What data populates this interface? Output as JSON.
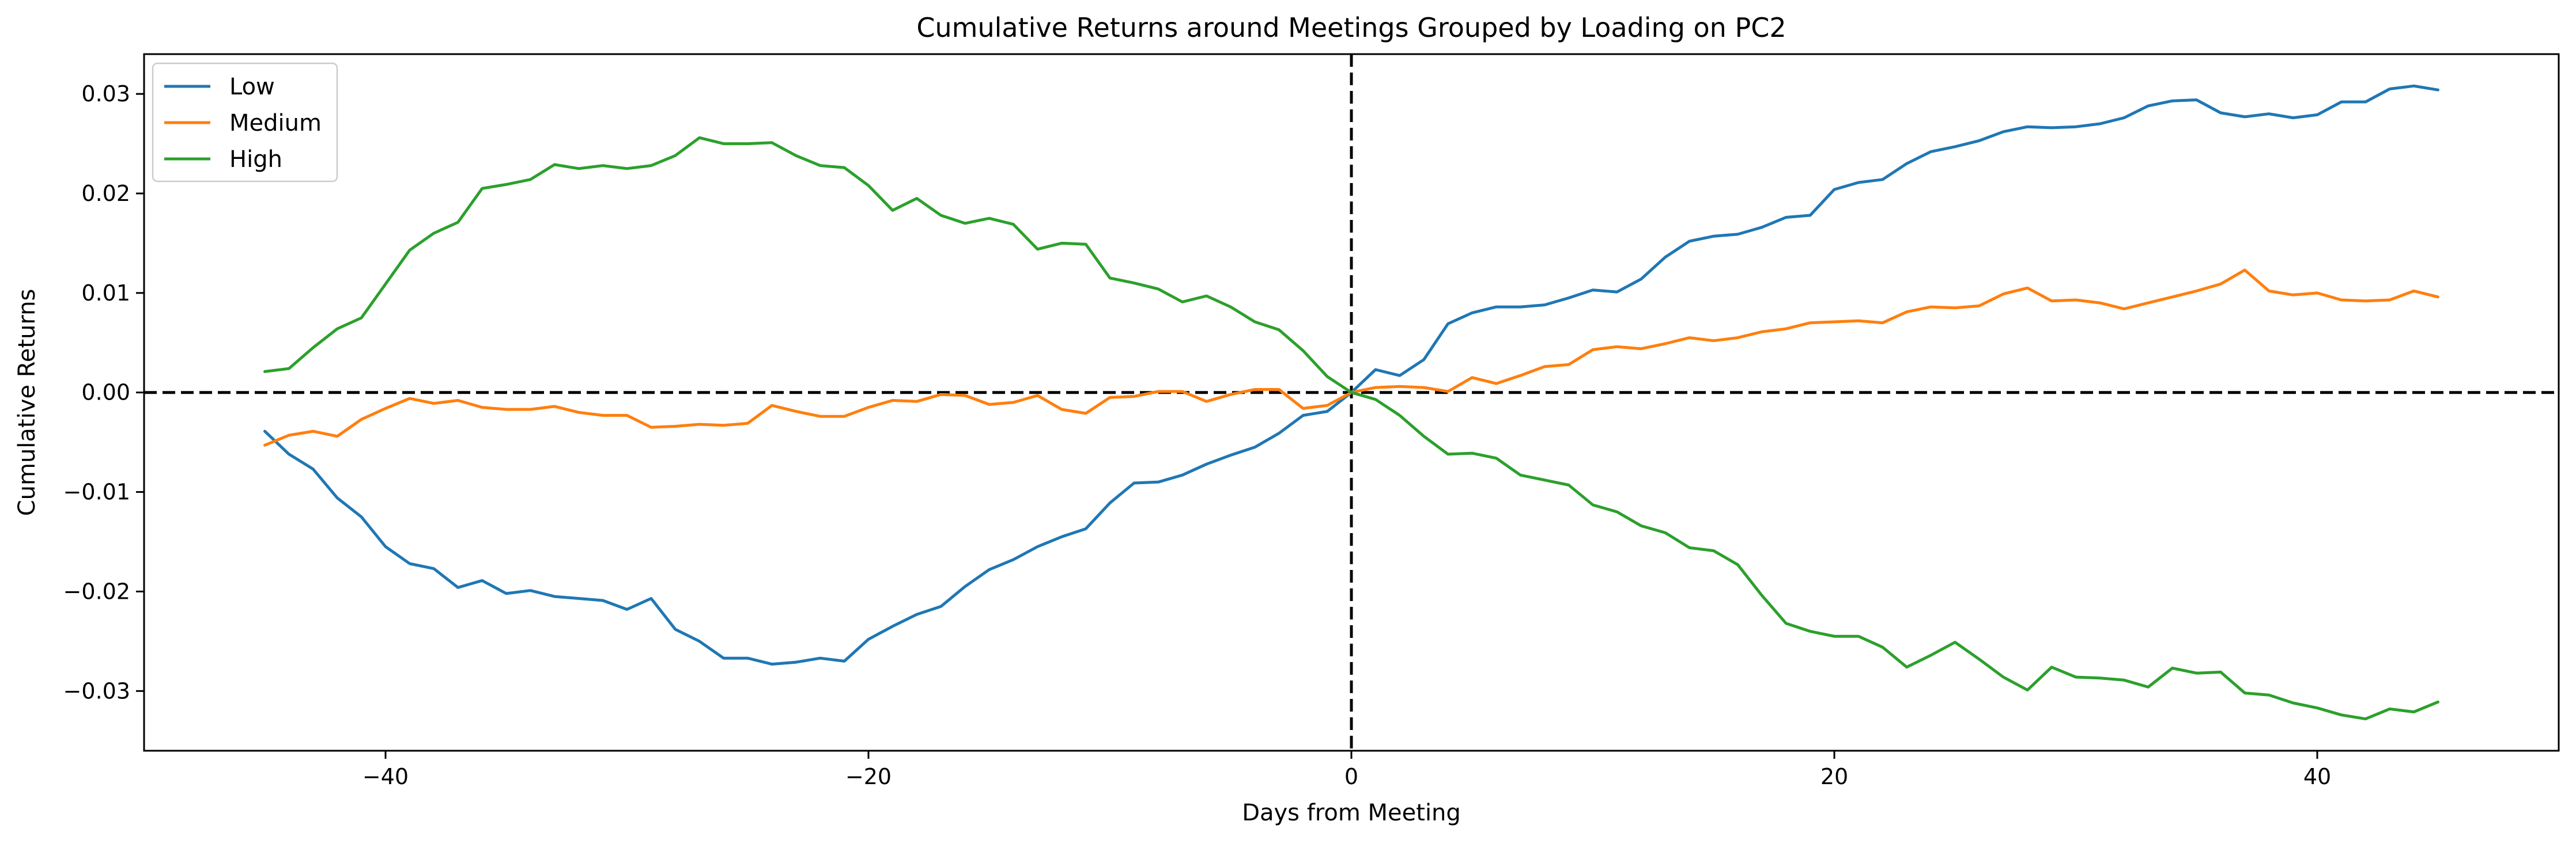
{
  "chart_data": {
    "type": "line",
    "title": "Cumulative Returns around Meetings Grouped by Loading on PC2",
    "xlabel": "Days from Meeting",
    "ylabel": "Cumulative Returns",
    "xlim": [
      -50,
      50
    ],
    "ylim": [
      -0.036,
      0.034
    ],
    "xticks": [
      -40,
      -20,
      0,
      20,
      40
    ],
    "xtick_labels": [
      "−40",
      "−20",
      "0",
      "20",
      "40"
    ],
    "yticks": [
      -0.03,
      -0.02,
      -0.01,
      0.0,
      0.01,
      0.02,
      0.03
    ],
    "ytick_labels": [
      "−0.03",
      "−0.02",
      "−0.01",
      "0.00",
      "0.01",
      "0.02",
      "0.03"
    ],
    "grid": false,
    "legend_position": "upper-left",
    "reference_lines": [
      {
        "orientation": "horizontal",
        "value": 0,
        "style": "dashed",
        "color": "#000000"
      },
      {
        "orientation": "vertical",
        "value": 0,
        "style": "dashed",
        "color": "#000000"
      }
    ],
    "x": [
      -45,
      -44,
      -43,
      -42,
      -41,
      -40,
      -39,
      -38,
      -37,
      -36,
      -35,
      -34,
      -33,
      -32,
      -31,
      -30,
      -29,
      -28,
      -27,
      -26,
      -25,
      -24,
      -23,
      -22,
      -21,
      -20,
      -19,
      -18,
      -17,
      -16,
      -15,
      -14,
      -13,
      -12,
      -11,
      -10,
      -9,
      -8,
      -7,
      -6,
      -5,
      -4,
      -3,
      -2,
      -1,
      0,
      1,
      2,
      3,
      4,
      5,
      6,
      7,
      8,
      9,
      10,
      11,
      12,
      13,
      14,
      15,
      16,
      17,
      18,
      19,
      20,
      21,
      22,
      23,
      24,
      25,
      26,
      27,
      28,
      29,
      30,
      31,
      32,
      33,
      34,
      35,
      36,
      37,
      38,
      39,
      40,
      41,
      42,
      43,
      44,
      45
    ],
    "series": [
      {
        "name": "Low",
        "color": "#1f77b4",
        "values": [
          -0.0039,
          -0.0062,
          -0.0077,
          -0.0106,
          -0.0125,
          -0.0155,
          -0.0172,
          -0.0177,
          -0.0196,
          -0.0189,
          -0.0202,
          -0.0199,
          -0.0205,
          -0.0207,
          -0.0209,
          -0.0218,
          -0.0207,
          -0.0238,
          -0.025,
          -0.0267,
          -0.0267,
          -0.0273,
          -0.0271,
          -0.0267,
          -0.027,
          -0.0248,
          -0.0235,
          -0.0223,
          -0.0215,
          -0.0195,
          -0.0178,
          -0.0168,
          -0.0155,
          -0.0145,
          -0.0137,
          -0.0111,
          -0.0091,
          -0.009,
          -0.0083,
          -0.0072,
          -0.0063,
          -0.0055,
          -0.0041,
          -0.0023,
          -0.0019,
          0.0,
          0.0023,
          0.0017,
          0.0033,
          0.0069,
          0.008,
          0.0086,
          0.0086,
          0.0088,
          0.0095,
          0.0103,
          0.0101,
          0.0114,
          0.0136,
          0.0152,
          0.0157,
          0.0159,
          0.0166,
          0.0176,
          0.0178,
          0.0204,
          0.0211,
          0.0214,
          0.023,
          0.0242,
          0.0247,
          0.0253,
          0.0262,
          0.0267,
          0.0266,
          0.0267,
          0.027,
          0.0276,
          0.0288,
          0.0293,
          0.0294,
          0.0281,
          0.0277,
          0.028,
          0.0276,
          0.0279,
          0.0292,
          0.0292,
          0.0305,
          0.0308,
          0.0304
        ]
      },
      {
        "name": "Medium",
        "color": "#ff7f0e",
        "values": [
          -0.0053,
          -0.0043,
          -0.0039,
          -0.0044,
          -0.0027,
          -0.0016,
          -0.0006,
          -0.0011,
          -0.0008,
          -0.0015,
          -0.0017,
          -0.0017,
          -0.0014,
          -0.002,
          -0.0023,
          -0.0023,
          -0.0035,
          -0.0034,
          -0.0032,
          -0.0033,
          -0.0031,
          -0.0013,
          -0.0019,
          -0.0024,
          -0.0024,
          -0.0015,
          -0.0008,
          -0.0009,
          -0.0002,
          -0.0003,
          -0.0012,
          -0.001,
          -0.0003,
          -0.0017,
          -0.0021,
          -0.0005,
          -0.0004,
          0.0001,
          0.0001,
          -0.0009,
          -0.0002,
          0.0003,
          0.0003,
          -0.0016,
          -0.0013,
          0.0,
          0.0005,
          0.0006,
          0.0005,
          0.0001,
          0.0015,
          0.0009,
          0.0017,
          0.0026,
          0.0028,
          0.0043,
          0.0046,
          0.0044,
          0.0049,
          0.0055,
          0.0052,
          0.0055,
          0.0061,
          0.0064,
          0.007,
          0.0071,
          0.0072,
          0.007,
          0.0081,
          0.0086,
          0.0085,
          0.0087,
          0.0099,
          0.0105,
          0.0092,
          0.0093,
          0.009,
          0.0084,
          0.009,
          0.0096,
          0.0102,
          0.0109,
          0.0123,
          0.0102,
          0.0098,
          0.01,
          0.0093,
          0.0092,
          0.0093,
          0.0102,
          0.0096
        ]
      },
      {
        "name": "High",
        "color": "#2ca02c",
        "values": [
          0.0021,
          0.0024,
          0.0045,
          0.0064,
          0.0075,
          0.0109,
          0.0143,
          0.016,
          0.0171,
          0.0205,
          0.0209,
          0.0214,
          0.0229,
          0.0225,
          0.0228,
          0.0225,
          0.0228,
          0.0238,
          0.0256,
          0.025,
          0.025,
          0.0251,
          0.0238,
          0.0228,
          0.0226,
          0.0208,
          0.0183,
          0.0195,
          0.0178,
          0.017,
          0.0175,
          0.0169,
          0.0144,
          0.015,
          0.0149,
          0.0115,
          0.011,
          0.0104,
          0.0091,
          0.0097,
          0.0086,
          0.0071,
          0.0063,
          0.0042,
          0.0016,
          0.0,
          -0.0007,
          -0.0023,
          -0.0044,
          -0.0062,
          -0.0061,
          -0.0066,
          -0.0083,
          -0.0088,
          -0.0093,
          -0.0113,
          -0.012,
          -0.0134,
          -0.0141,
          -0.0156,
          -0.0159,
          -0.0173,
          -0.0204,
          -0.0232,
          -0.024,
          -0.0245,
          -0.0245,
          -0.0256,
          -0.0276,
          -0.0264,
          -0.0251,
          -0.0268,
          -0.0286,
          -0.0299,
          -0.0276,
          -0.0286,
          -0.0287,
          -0.0289,
          -0.0296,
          -0.0277,
          -0.0282,
          -0.0281,
          -0.0302,
          -0.0304,
          -0.0312,
          -0.0317,
          -0.0324,
          -0.0328,
          -0.0318,
          -0.0321,
          -0.0311
        ]
      }
    ]
  }
}
